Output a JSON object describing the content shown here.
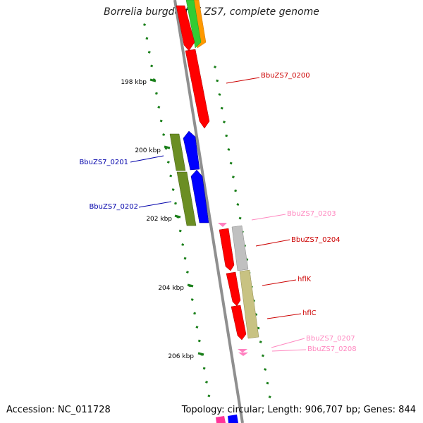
{
  "title": "Borrelia burgdorferi ZS7, complete genome",
  "footer": {
    "accession": "Accession: NC_011728",
    "summary": "Topology: circular; Length: 906,707 bp; Genes: 844"
  },
  "colors": {
    "backbone": "#8f8f8f",
    "tick": "#1a7f1a",
    "red": "#ff0000",
    "blue": "#0000ff",
    "olive": "#6b8e23",
    "khaki": "#c8c282",
    "grey": "#c0c0c0",
    "pink": "#ff80c0",
    "label_red": "#cc0000",
    "label_blue": "#0000aa",
    "label_pink": "#ff88c0",
    "orange": "#ff9900",
    "green": "#33cc33",
    "magenta": "#ff3399"
  },
  "scale_labels": [
    "198 kbp",
    "200 kbp",
    "202 kbp",
    "204 kbp",
    "206 kbp"
  ],
  "gene_labels": [
    {
      "text": "BbuZS7_0200",
      "color": "label_red"
    },
    {
      "text": "BbuZS7_0201",
      "color": "label_blue"
    },
    {
      "text": "BbuZS7_0202",
      "color": "label_blue"
    },
    {
      "text": "BbuZS7_0203",
      "color": "label_pink"
    },
    {
      "text": "BbuZS7_0204",
      "color": "label_red"
    },
    {
      "text": "hflK",
      "color": "label_red"
    },
    {
      "text": "hflC",
      "color": "label_red"
    },
    {
      "text": "BbuZS7_0207",
      "color": "label_pink"
    },
    {
      "text": "BbuZS7_0208",
      "color": "label_pink"
    }
  ]
}
